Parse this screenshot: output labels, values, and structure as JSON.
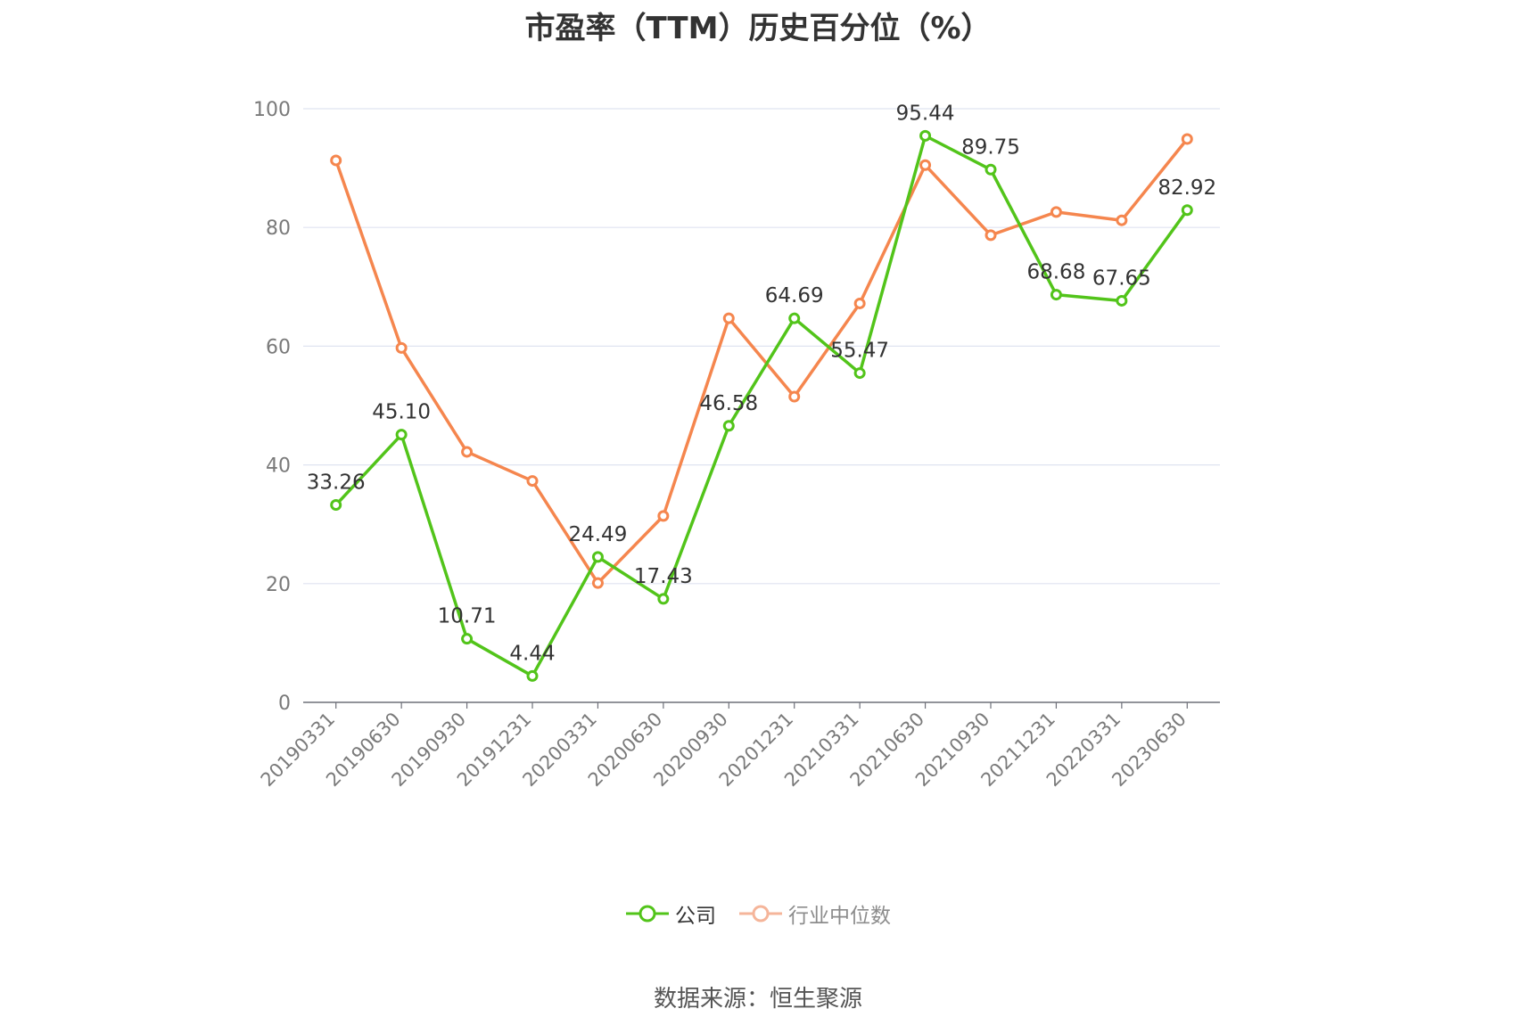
{
  "title": "市盈率（TTM）历史百分位（%）",
  "source_note": "数据来源：恒生聚源",
  "colors": {
    "company": "#52c41a",
    "industry": "#f5864e",
    "grid": "#dfe3f0",
    "axis": "#6e7079"
  },
  "legend": [
    {
      "name": "公司",
      "color": "#52c41a",
      "muted": false
    },
    {
      "name": "行业中位数",
      "color": "#f5b59a",
      "muted": true
    }
  ],
  "chart_data": {
    "type": "line",
    "title": "市盈率（TTM）历史百分位（%）",
    "x": [
      "20190331",
      "20190630",
      "20190930",
      "20191231",
      "20200331",
      "20200630",
      "20200930",
      "20201231",
      "20210331",
      "20210630",
      "20210930",
      "20211231",
      "20220331",
      "20230630"
    ],
    "ylim": [
      0,
      100
    ],
    "yticks": [
      0,
      20,
      40,
      60,
      80,
      100
    ],
    "grid": true,
    "legend_position": "bottom",
    "series": [
      {
        "name": "公司",
        "color": "#52c41a",
        "show_labels": true,
        "values": [
          33.26,
          45.1,
          10.71,
          4.44,
          24.49,
          17.43,
          46.58,
          64.69,
          55.47,
          95.44,
          89.75,
          68.68,
          67.65,
          82.92
        ],
        "labels": [
          "33.26",
          "45.10",
          "10.71",
          "4.44",
          "24.49",
          "17.43",
          "46.58",
          "64.69",
          "55.47",
          "95.44",
          "89.75",
          "68.68",
          "67.65",
          "82.92"
        ]
      },
      {
        "name": "行业中位数",
        "color": "#f5864e",
        "show_labels": false,
        "values": [
          91.3,
          59.7,
          42.2,
          37.3,
          20.1,
          31.4,
          64.7,
          51.5,
          67.2,
          90.5,
          78.7,
          82.6,
          81.2,
          94.9
        ]
      }
    ]
  }
}
